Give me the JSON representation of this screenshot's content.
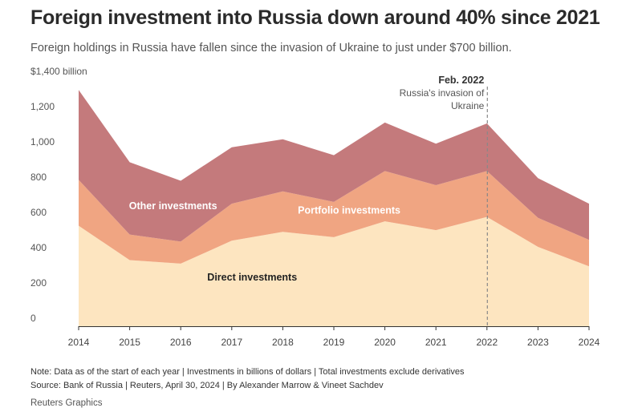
{
  "header": {
    "title": "Foreign investment into Russia down around 40% since 2021",
    "subtitle": "Foreign holdings in Russia have fallen since the invasion of Ukraine to just under $700 billion."
  },
  "footer": {
    "note": "Note: Data as of the start of each year | Investments in billions of dollars | Total investments exclude derivatives",
    "source": "Source: Bank of Russia | Reuters, April 30, 2024 | By Alexander Marrow & Vineet Sachdev",
    "credit": "Reuters Graphics"
  },
  "chart_data": {
    "type": "area",
    "stacked": true,
    "x": [
      "2014",
      "2015",
      "2016",
      "2017",
      "2018",
      "2019",
      "2020",
      "2021",
      "2022",
      "2023",
      "2024"
    ],
    "series": [
      {
        "name": "Direct investments",
        "values": [
          570,
          375,
          355,
          485,
          535,
          505,
          595,
          545,
          620,
          450,
          340
        ],
        "color": "#fde5c0",
        "label_color": "#222222"
      },
      {
        "name": "Portfolio investments",
        "values": [
          260,
          145,
          125,
          210,
          230,
          200,
          285,
          255,
          260,
          165,
          150
        ],
        "color": "#f0a582",
        "label_color": "#ffffff"
      },
      {
        "name": "Other investments",
        "values": [
          510,
          410,
          345,
          320,
          295,
          265,
          275,
          235,
          270,
          225,
          205
        ],
        "color": "#c47a7c",
        "label_color": "#ffffff"
      }
    ],
    "y_ticks": [
      "$1,400 billion",
      "1,200",
      "1,000",
      "800",
      "600",
      "400",
      "200",
      "0"
    ],
    "y_tick_values": [
      1400,
      1200,
      1000,
      800,
      600,
      400,
      200,
      0
    ],
    "ylim": [
      0,
      1400
    ],
    "grid": false,
    "annotation": {
      "x": "2022",
      "title": "Feb. 2022",
      "lines": [
        "Russia's invasion of",
        "Ukraine"
      ]
    }
  }
}
